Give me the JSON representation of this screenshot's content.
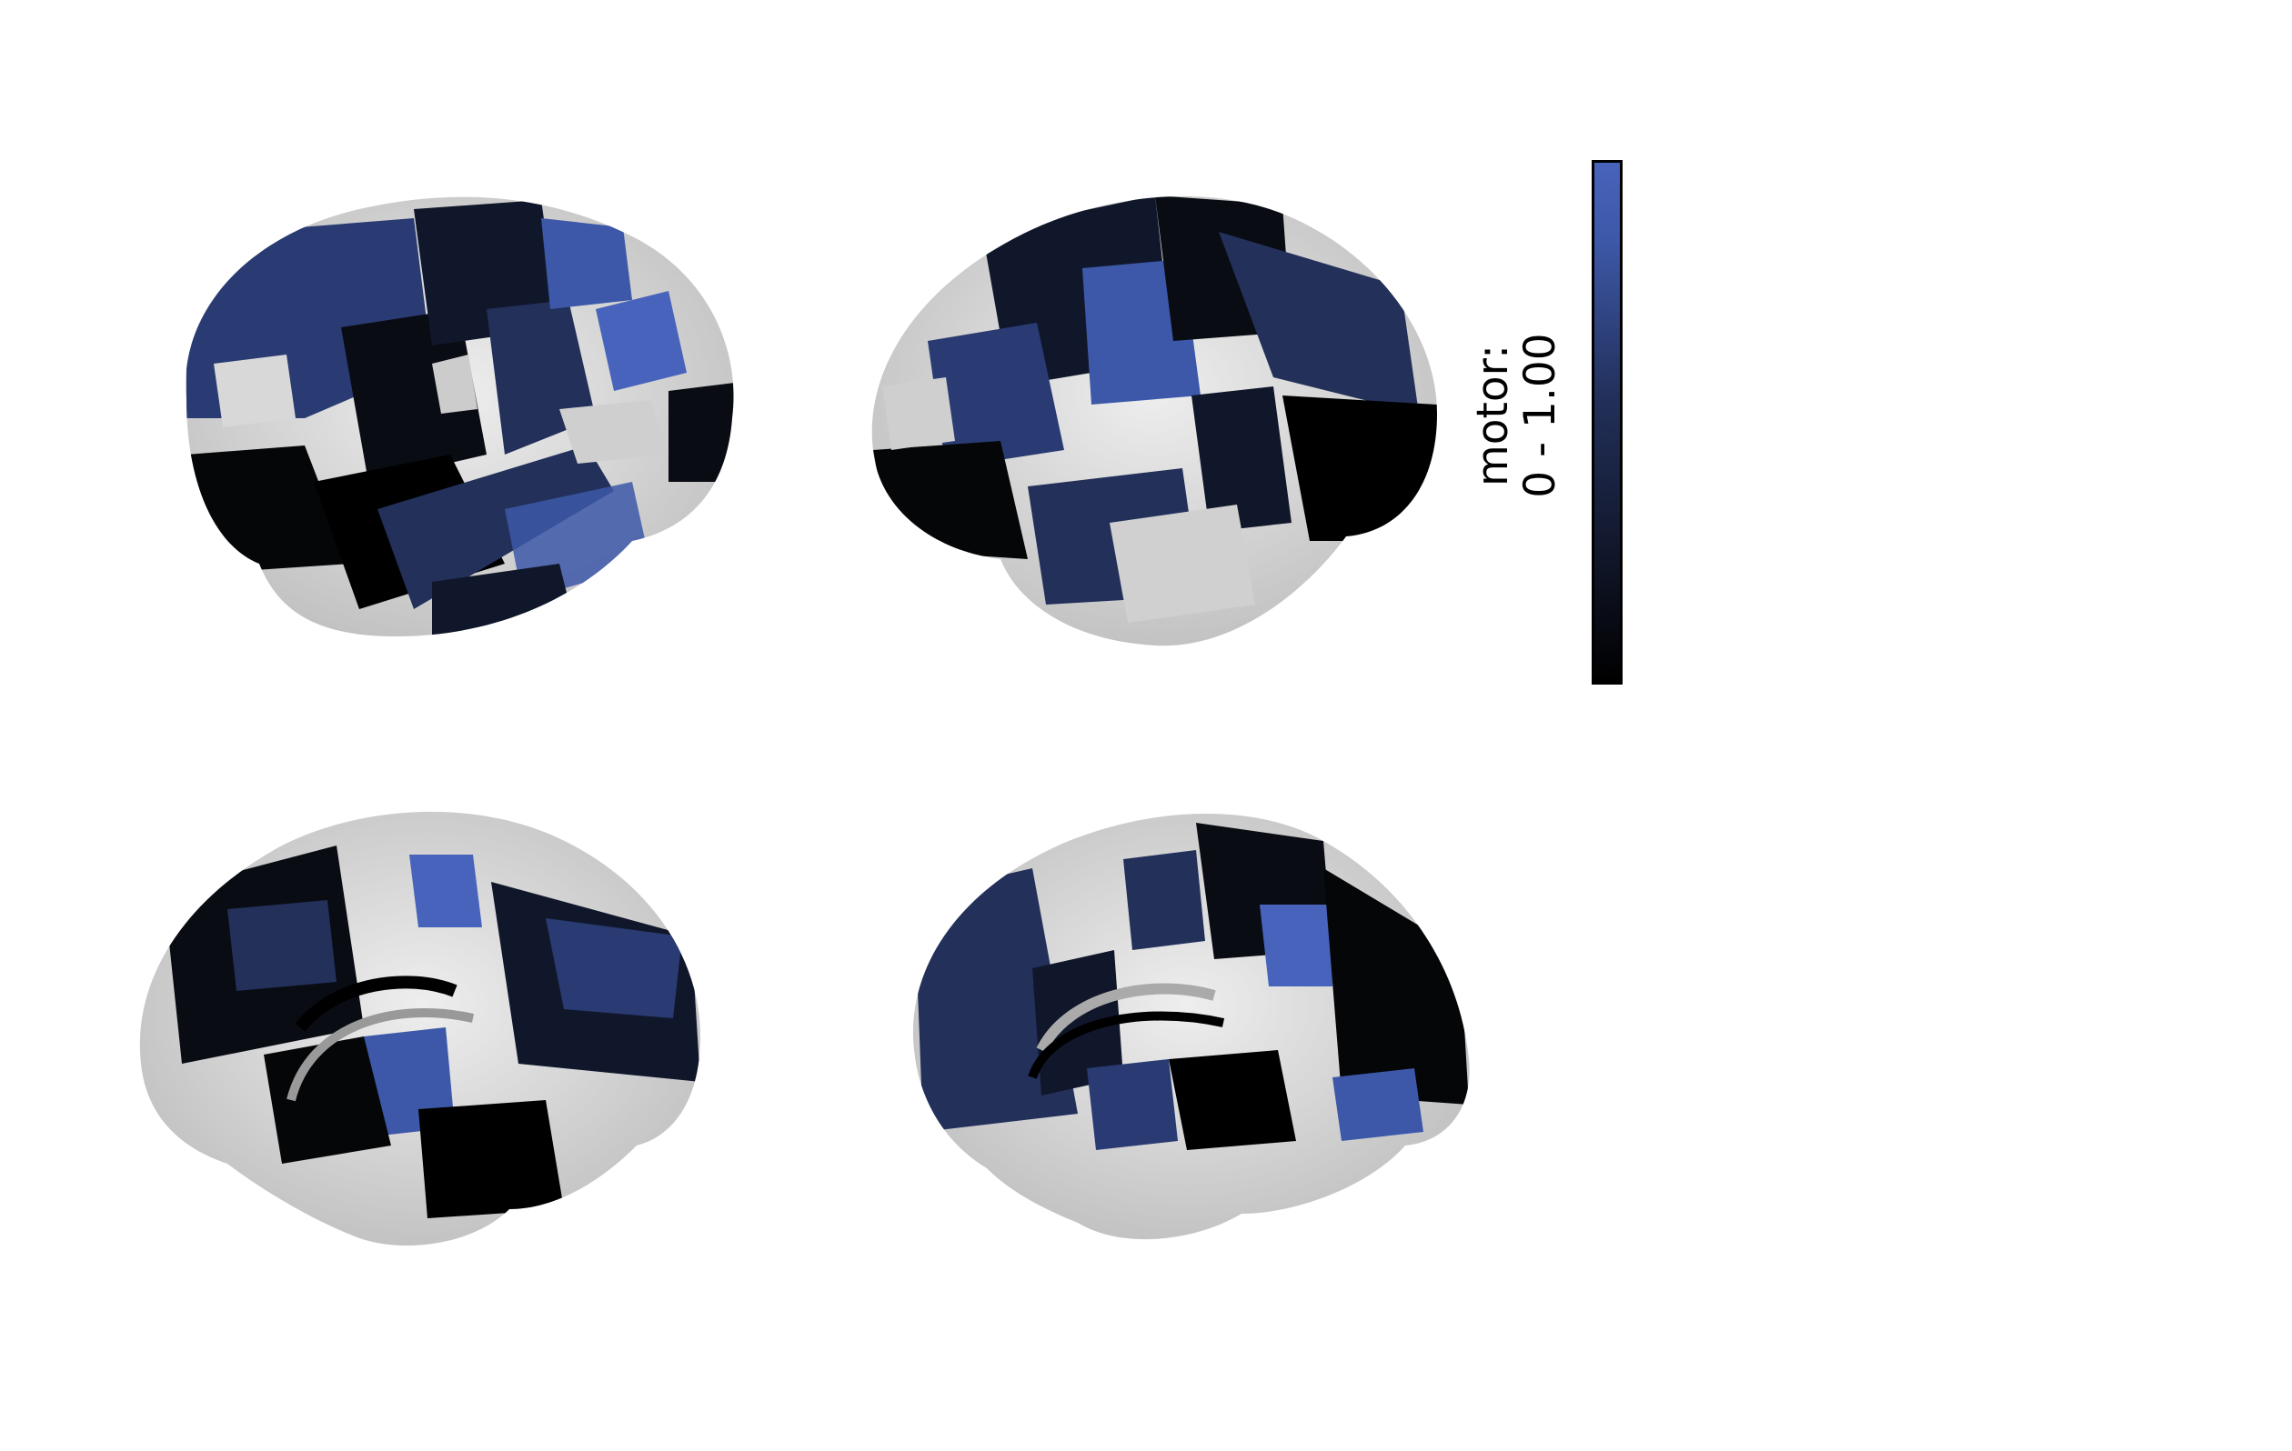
{
  "colorbar": {
    "label_name": "motor:",
    "label_range": "0 - 1.00",
    "min": 0,
    "max": 1.0,
    "colors": {
      "low": "#000000",
      "mid": "#22305a",
      "high": "#4863bb"
    }
  },
  "surface_color": "#d2d2d2",
  "views": [
    "lateral-left",
    "lateral-right",
    "medial-left",
    "medial-right"
  ]
}
